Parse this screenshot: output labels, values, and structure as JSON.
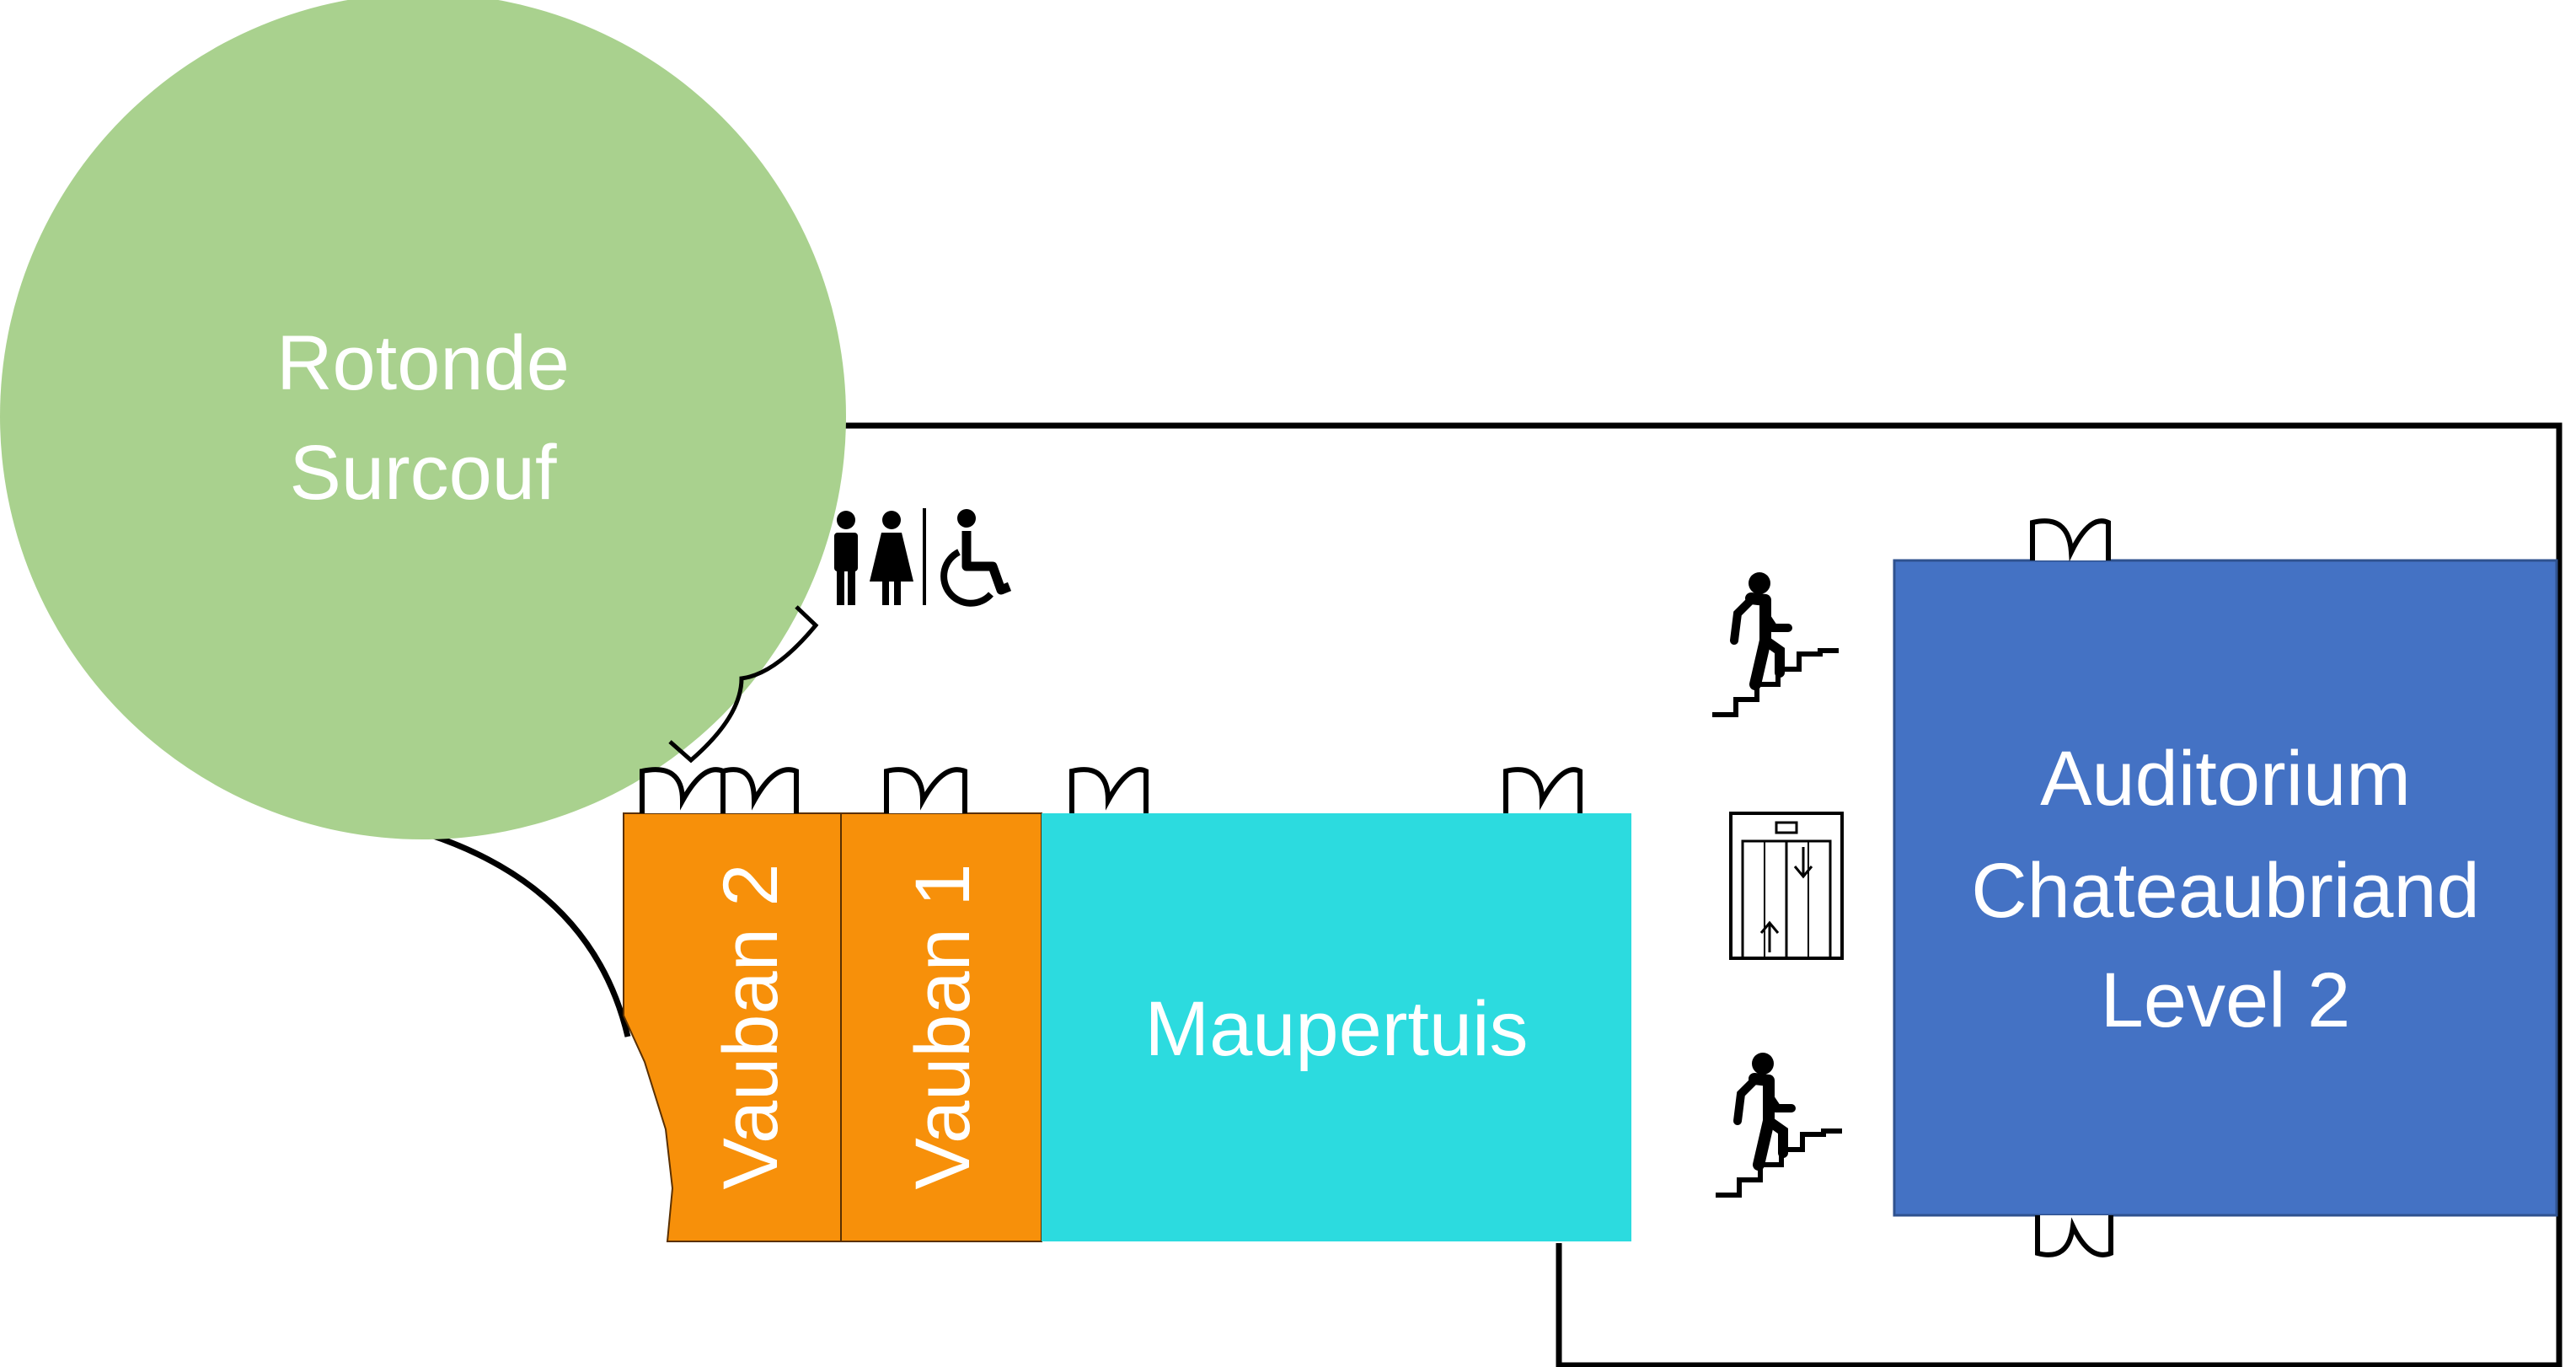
{
  "rooms": {
    "rotonde": {
      "line1": "Rotonde",
      "line2": "Surcouf",
      "color": "#a9d18e"
    },
    "vauban2": {
      "label": "Vauban 2",
      "color": "#f7900a"
    },
    "vauban1": {
      "label": "Vauban 1",
      "color": "#f7900a"
    },
    "maupertuis": {
      "label": "Maupertuis",
      "color": "#2cdbdf"
    },
    "auditorium": {
      "line1": "Auditorium",
      "line2": "Chateaubriand",
      "line3": "Level 2",
      "color": "#4472c4"
    }
  },
  "icons": [
    "restroom-icon",
    "wheelchair-icon",
    "stairs-icon",
    "elevator-icon",
    "door-icon"
  ]
}
